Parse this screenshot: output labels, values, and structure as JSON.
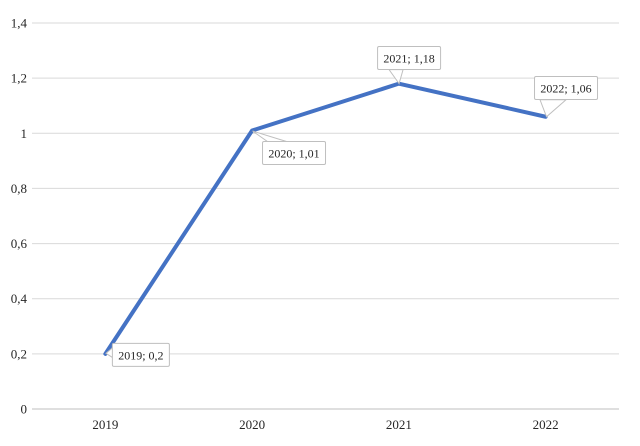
{
  "chart_data": {
    "type": "line",
    "title": "",
    "xlabel": "",
    "ylabel": "",
    "categories": [
      "2019",
      "2020",
      "2021",
      "2022"
    ],
    "series": [
      {
        "name": "",
        "values": [
          0.2,
          1.01,
          1.18,
          1.06
        ]
      }
    ],
    "data_labels": [
      "2019; 0,2",
      "2020; 1,01",
      "2021; 1,18",
      "2022; 1,06"
    ],
    "y_tick_labels": [
      "0",
      "0,2",
      "0,4",
      "0,6",
      "0,8",
      "1",
      "1,2",
      "1,4"
    ],
    "y_tick_values": [
      0,
      0.2,
      0.4,
      0.6,
      0.8,
      1.0,
      1.2,
      1.4
    ],
    "ylim": [
      0,
      1.4
    ],
    "grid": true,
    "legend": "none",
    "decimal_separator": ",",
    "colors": {
      "line": "#4472C4",
      "gridline": "#D9D9D9",
      "axis_line": "#BFBFBF",
      "tick_label": "#262626",
      "callout_border": "#BFBFBF",
      "callout_fill": "#FFFFFF",
      "callout_text": "#262626",
      "background": "#FFFFFF"
    }
  }
}
